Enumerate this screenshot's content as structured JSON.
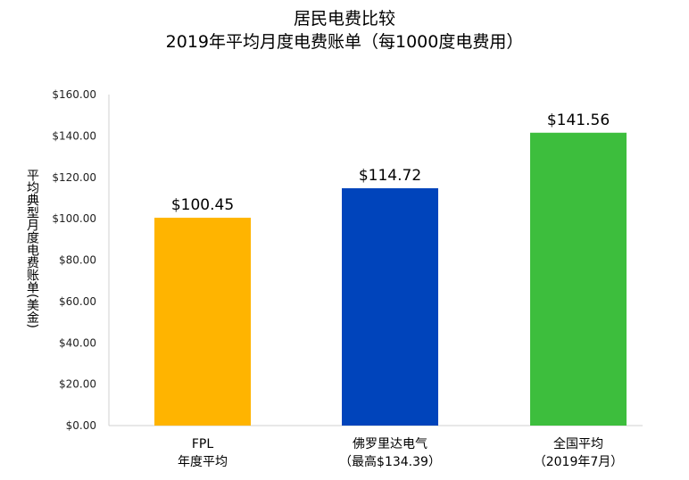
{
  "chart_data": {
    "type": "bar",
    "title": "居民电费比较",
    "subtitle": "2019年平均月度电费账单（每1000度电费用）",
    "ylabel": "平均典型月度电费账单(美金)",
    "xlabel": "",
    "ylim": [
      0,
      160
    ],
    "yticks": [
      "$0.00",
      "$20.00",
      "$40.00",
      "$60.00",
      "$80.00",
      "$100.00",
      "$120.00",
      "$140.00",
      "$160.00"
    ],
    "grid": false,
    "categories": [
      {
        "line1": "FPL",
        "line2": "年度平均"
      },
      {
        "line1": "佛罗里达电气",
        "line2": "（最高$134.39）"
      },
      {
        "line1": "全国平均",
        "line2": "（2019年7月）"
      }
    ],
    "values": [
      100.45,
      114.72,
      141.56
    ],
    "data_labels": [
      "$100.45",
      "$114.72",
      "$141.56"
    ],
    "colors": [
      "#FFB400",
      "#0044BB",
      "#3DBE3D"
    ]
  }
}
